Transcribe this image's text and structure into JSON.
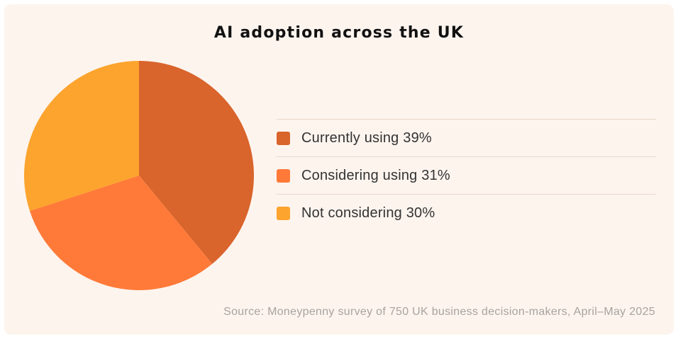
{
  "chart_data": {
    "type": "pie",
    "title": "AI adoption across the UK",
    "series": [
      {
        "name": "Currently using",
        "value": 39,
        "label": "39%",
        "color": "#d9642c"
      },
      {
        "name": "Considering using",
        "value": 31,
        "label": "31%",
        "color": "#ff7a38"
      },
      {
        "name": "Not considering",
        "value": 30,
        "label": "30%",
        "color": "#fca42e"
      }
    ],
    "legend_position": "right",
    "source": "Source: Moneypenny survey of 750 UK business decision-makers, April–May 2025"
  }
}
